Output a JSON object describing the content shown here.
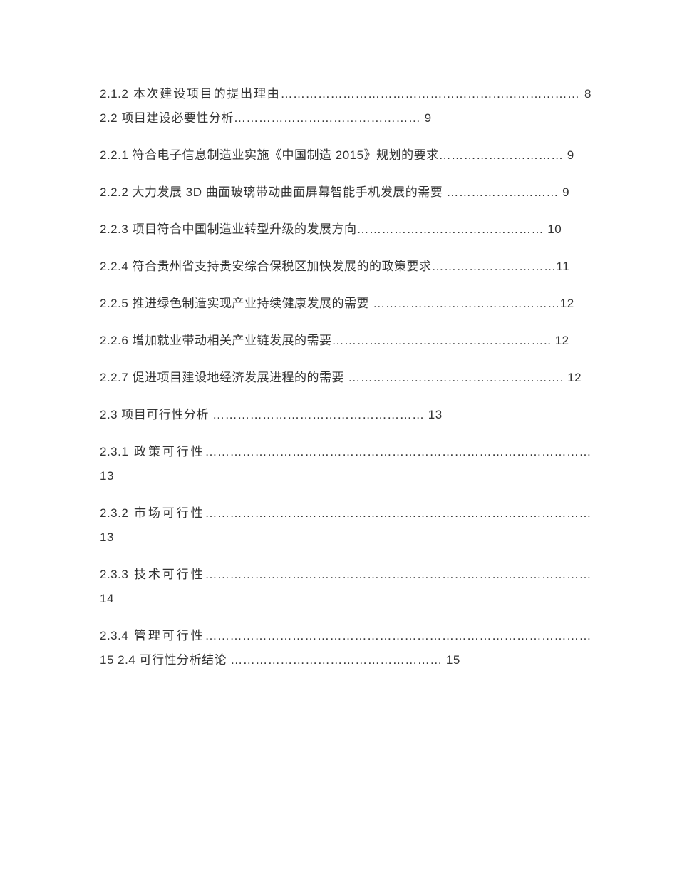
{
  "entries": [
    "2.1.2 本次建设项目的提出理由……………………………………………………………… 8  2.2 项目建设必要性分析……………………………………… 9",
    "2.2.1 符合电子信息制造业实施《中国制造 2015》规划的要求………………………… 9",
    "2.2.2 大力发展 3D 曲面玻璃带动曲面屏幕智能手机发展的需要 ……………………… 9",
    "2.2.3 项目符合中国制造业转型升级的发展方向……………………………………… 10",
    "2.2.4 符合贵州省支持贵安综合保税区加快发展的的政策要求…………………………11",
    "2.2.5 推进绿色制造实现产业持续健康发展的需要 ………………………………………12",
    "2.2.6 增加就业带动相关产业链发展的需要…………………………………………….. 12",
    "2.2.7 促进项目建设地经济发展进程的的需要 ……………………………………………. 12",
    "2.3 项目可行性分析 …………………………………………… 13",
    "2.3.1 政策可行性…………………………………………………………………………………  13",
    "2.3.2 市场可行性…………………………………………………………………………………  13",
    "2.3.3 技术可行性…………………………………………………………………………………  14",
    "2.3.4 管理可行性………………………………………………………………………………… 15  2.4 可行性分析结论 …………………………………………… 15"
  ]
}
